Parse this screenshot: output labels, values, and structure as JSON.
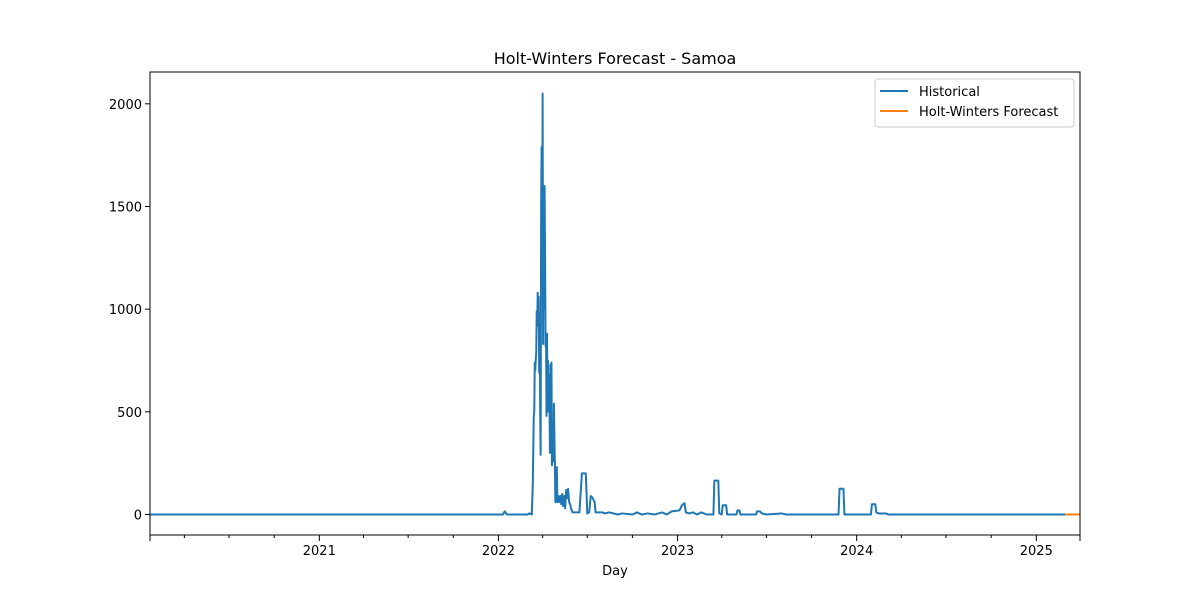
{
  "chart_data": {
    "type": "line",
    "title": "Holt-Winters Forecast - Samoa",
    "xlabel": "Day",
    "ylabel": "",
    "x_ticks": [
      "2021",
      "2022",
      "2023",
      "2024",
      "2025"
    ],
    "y_ticks": [
      0,
      500,
      1000,
      1500,
      2000
    ],
    "xlim": [
      "2020-01-22",
      "2025-03-31"
    ],
    "ylim": [
      -100,
      2155
    ],
    "grid": false,
    "legend_position": "top-right",
    "series": [
      {
        "name": "Historical",
        "color": "#1f77b4",
        "points": [
          [
            "2020-01-22",
            0
          ],
          [
            "2022-01-01",
            0
          ],
          [
            "2022-01-10",
            0
          ],
          [
            "2022-01-14",
            15
          ],
          [
            "2022-01-18",
            0
          ],
          [
            "2022-03-01",
            0
          ],
          [
            "2022-03-05",
            5
          ],
          [
            "2022-03-10",
            0
          ],
          [
            "2022-03-12",
            150
          ],
          [
            "2022-03-14",
            480
          ],
          [
            "2022-03-15",
            500
          ],
          [
            "2022-03-16",
            740
          ],
          [
            "2022-03-17",
            700
          ],
          [
            "2022-03-18",
            750
          ],
          [
            "2022-03-19",
            790
          ],
          [
            "2022-03-20",
            990
          ],
          [
            "2022-03-21",
            920
          ],
          [
            "2022-03-22",
            1080
          ],
          [
            "2022-03-23",
            940
          ],
          [
            "2022-03-24",
            1060
          ],
          [
            "2022-03-25",
            690
          ],
          [
            "2022-03-26",
            980
          ],
          [
            "2022-03-27",
            510
          ],
          [
            "2022-03-28",
            290
          ],
          [
            "2022-03-29",
            1510
          ],
          [
            "2022-03-30",
            1790
          ],
          [
            "2022-03-31",
            1200
          ],
          [
            "2022-04-01",
            2050
          ],
          [
            "2022-04-02",
            830
          ],
          [
            "2022-04-03",
            1460
          ],
          [
            "2022-04-04",
            1000
          ],
          [
            "2022-04-05",
            1600
          ],
          [
            "2022-04-06",
            1240
          ],
          [
            "2022-04-07",
            820
          ],
          [
            "2022-04-08",
            880
          ],
          [
            "2022-04-09",
            480
          ],
          [
            "2022-04-10",
            880
          ],
          [
            "2022-04-11",
            500
          ],
          [
            "2022-04-12",
            750
          ],
          [
            "2022-04-13",
            520
          ],
          [
            "2022-04-14",
            680
          ],
          [
            "2022-04-15",
            560
          ],
          [
            "2022-04-16",
            300
          ],
          [
            "2022-04-17",
            730
          ],
          [
            "2022-04-18",
            380
          ],
          [
            "2022-04-19",
            740
          ],
          [
            "2022-04-20",
            240
          ],
          [
            "2022-04-21",
            290
          ],
          [
            "2022-04-22",
            410
          ],
          [
            "2022-04-23",
            260
          ],
          [
            "2022-04-24",
            540
          ],
          [
            "2022-04-25",
            380
          ],
          [
            "2022-04-26",
            250
          ],
          [
            "2022-04-27",
            60
          ],
          [
            "2022-04-28",
            230
          ],
          [
            "2022-04-29",
            120
          ],
          [
            "2022-04-30",
            230
          ],
          [
            "2022-05-01",
            60
          ],
          [
            "2022-05-03",
            90
          ],
          [
            "2022-05-05",
            60
          ],
          [
            "2022-05-07",
            90
          ],
          [
            "2022-05-09",
            50
          ],
          [
            "2022-05-11",
            100
          ],
          [
            "2022-05-13",
            40
          ],
          [
            "2022-05-15",
            90
          ],
          [
            "2022-05-17",
            30
          ],
          [
            "2022-05-19",
            120
          ],
          [
            "2022-05-21",
            80
          ],
          [
            "2022-05-23",
            125
          ],
          [
            "2022-05-25",
            60
          ],
          [
            "2022-05-27",
            50
          ],
          [
            "2022-05-29",
            30
          ],
          [
            "2022-06-01",
            10
          ],
          [
            "2022-06-15",
            10
          ],
          [
            "2022-06-20",
            200
          ],
          [
            "2022-06-28",
            200
          ],
          [
            "2022-07-01",
            5
          ],
          [
            "2022-07-05",
            10
          ],
          [
            "2022-07-08",
            90
          ],
          [
            "2022-07-12",
            80
          ],
          [
            "2022-07-16",
            60
          ],
          [
            "2022-07-18",
            10
          ],
          [
            "2022-08-01",
            10
          ],
          [
            "2022-08-05",
            5
          ],
          [
            "2022-08-15",
            10
          ],
          [
            "2022-09-01",
            0
          ],
          [
            "2022-09-10",
            5
          ],
          [
            "2022-10-01",
            0
          ],
          [
            "2022-10-10",
            10
          ],
          [
            "2022-10-20",
            0
          ],
          [
            "2022-11-01",
            5
          ],
          [
            "2022-11-15",
            0
          ],
          [
            "2022-12-01",
            10
          ],
          [
            "2022-12-10",
            0
          ],
          [
            "2022-12-20",
            15
          ],
          [
            "2023-01-05",
            20
          ],
          [
            "2023-01-10",
            45
          ],
          [
            "2023-01-15",
            55
          ],
          [
            "2023-01-18",
            10
          ],
          [
            "2023-01-25",
            5
          ],
          [
            "2023-02-01",
            10
          ],
          [
            "2023-02-10",
            0
          ],
          [
            "2023-02-18",
            10
          ],
          [
            "2023-03-01",
            0
          ],
          [
            "2023-03-15",
            0
          ],
          [
            "2023-03-17",
            165
          ],
          [
            "2023-03-25",
            165
          ],
          [
            "2023-03-27",
            5
          ],
          [
            "2023-04-01",
            0
          ],
          [
            "2023-04-03",
            45
          ],
          [
            "2023-04-10",
            45
          ],
          [
            "2023-04-12",
            0
          ],
          [
            "2023-05-01",
            0
          ],
          [
            "2023-05-03",
            20
          ],
          [
            "2023-05-07",
            20
          ],
          [
            "2023-05-09",
            0
          ],
          [
            "2023-06-10",
            0
          ],
          [
            "2023-06-12",
            15
          ],
          [
            "2023-06-18",
            15
          ],
          [
            "2023-06-22",
            5
          ],
          [
            "2023-07-01",
            0
          ],
          [
            "2023-08-01",
            5
          ],
          [
            "2023-08-10",
            0
          ],
          [
            "2023-11-25",
            0
          ],
          [
            "2023-11-27",
            125
          ],
          [
            "2023-12-05",
            125
          ],
          [
            "2023-12-07",
            0
          ],
          [
            "2024-01-30",
            0
          ],
          [
            "2024-02-01",
            50
          ],
          [
            "2024-02-08",
            50
          ],
          [
            "2024-02-10",
            10
          ],
          [
            "2024-02-15",
            5
          ],
          [
            "2024-03-01",
            5
          ],
          [
            "2024-03-05",
            0
          ],
          [
            "2025-03-01",
            0
          ]
        ]
      },
      {
        "name": "Holt-Winters Forecast",
        "color": "#ff7f0e",
        "points": [
          [
            "2025-03-01",
            0
          ],
          [
            "2025-03-31",
            0
          ]
        ]
      }
    ]
  }
}
